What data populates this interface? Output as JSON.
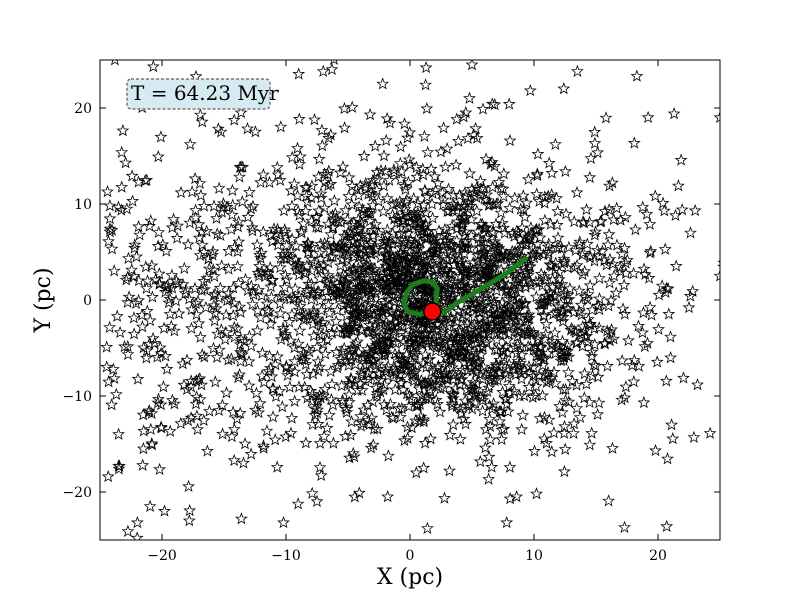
{
  "chart_data": {
    "type": "scatter",
    "title": "",
    "xlabel": "X (pc)",
    "ylabel": "Y (pc)",
    "xlim": [
      -25,
      25
    ],
    "ylim": [
      -25,
      25
    ],
    "xticks": [
      -20,
      -10,
      0,
      10,
      20
    ],
    "yticks": [
      -20,
      -10,
      0,
      10,
      20
    ],
    "xtick_labels": [
      "−20",
      "−10",
      "0",
      "10",
      "20"
    ],
    "ytick_labels": [
      "−20",
      "−10",
      "0",
      "10",
      "20"
    ],
    "grid": false,
    "annotation": {
      "text": "T = 64.23 Myr",
      "position": "top-left"
    },
    "stars": {
      "marker": "star-outline",
      "color": "#000000",
      "approx_count": 2500,
      "center": [
        3,
        0
      ],
      "spread": [
        9,
        8
      ],
      "sample_points": [
        [
          -24.2,
          7.1
        ],
        [
          -23.5,
          -14
        ],
        [
          -22,
          -24.8
        ],
        [
          -23.8,
          25
        ],
        [
          -7,
          23.8
        ],
        [
          -6.3,
          24
        ],
        [
          -2.2,
          22.5
        ],
        [
          1.3,
          24.2
        ],
        [
          4.5,
          19.5
        ],
        [
          4.8,
          21
        ],
        [
          5,
          24.5
        ],
        [
          8,
          20.4
        ],
        [
          9.7,
          21.8
        ],
        [
          12.4,
          22
        ],
        [
          13.5,
          23.8
        ],
        [
          18.3,
          23.3
        ],
        [
          19.2,
          19
        ],
        [
          21.3,
          19.4
        ],
        [
          25,
          19
        ],
        [
          23,
          9.3
        ],
        [
          20.7,
          1.2
        ],
        [
          22.8,
          0.9
        ],
        [
          22.5,
          -0.8
        ],
        [
          25,
          2.5
        ],
        [
          24.2,
          -13.9
        ],
        [
          19.8,
          -15.7
        ],
        [
          17.3,
          -23.7
        ],
        [
          20.7,
          -23.6
        ],
        [
          14.5,
          -15.1
        ],
        [
          10.2,
          -20.2
        ],
        [
          8.6,
          -20.5
        ],
        [
          7.8,
          -23.2
        ],
        [
          1.4,
          -23.8
        ],
        [
          -1.8,
          -20.5
        ],
        [
          -7.5,
          -21
        ],
        [
          -10.2,
          -23.2
        ],
        [
          -13.6,
          -22.8
        ],
        [
          -17.8,
          -23
        ],
        [
          -19.8,
          -22
        ],
        [
          -23.5,
          -17.3
        ],
        [
          -21.5,
          -15.5
        ]
      ]
    },
    "series": [
      {
        "name": "",
        "type": "line",
        "color": "#1b7d1b",
        "x": [
          9.3,
          7.8,
          6.3,
          5,
          3.9,
          3.2,
          2.6,
          2.1,
          1.9,
          2.1,
          2.2,
          1.8,
          1.1,
          0.2,
          -0.3,
          -0.5,
          -0.2,
          0.8,
          1.7
        ],
        "y": [
          4.3,
          2.8,
          1.6,
          0.6,
          -0.2,
          -0.9,
          -1.4,
          -1.7,
          -1.4,
          -0.2,
          1.2,
          1.9,
          2,
          1.6,
          0.7,
          -0.4,
          -1.2,
          -1.5,
          -1.2
        ]
      }
    ],
    "highlight_point": {
      "x": 1.8,
      "y": -1.2,
      "color": "#ff0000",
      "edge_color": "#000000"
    }
  }
}
